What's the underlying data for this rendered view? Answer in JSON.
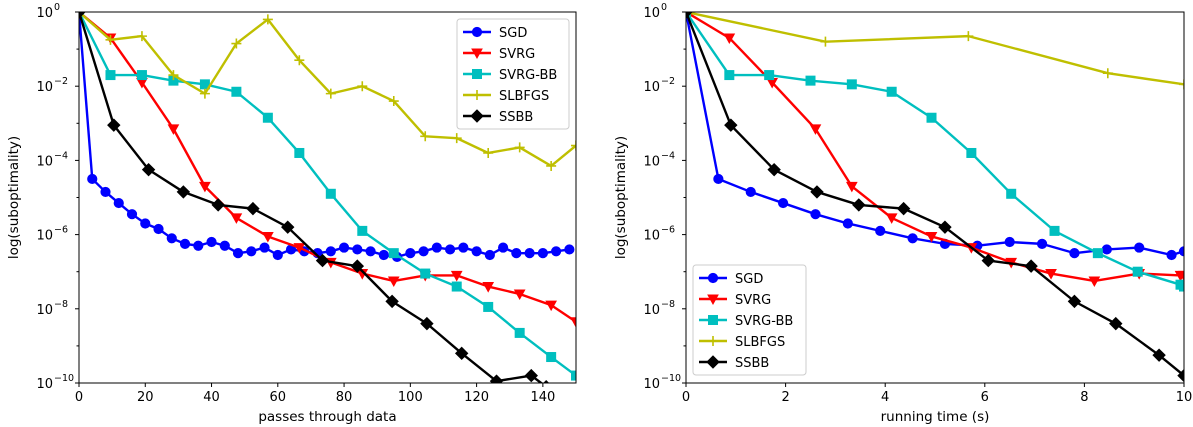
{
  "chart_data": [
    {
      "type": "line",
      "xlabel": "passes through data",
      "ylabel": "log(suboptimality)",
      "xlim": [
        0,
        150
      ],
      "ylim_log10": [
        -10,
        0
      ],
      "yscale": "log",
      "grid": false,
      "legend_position": "top-right",
      "xticks": [
        0,
        20,
        40,
        60,
        80,
        100,
        120,
        140
      ],
      "yticks_log10": [
        -10,
        -8,
        -6,
        -4,
        -2,
        0
      ],
      "series": [
        {
          "name": "SGD",
          "color": "#0000ff",
          "marker": "circle",
          "x": [
            0,
            4,
            8,
            12,
            16,
            20,
            24,
            28,
            32,
            36,
            40,
            44,
            48,
            52,
            56,
            60,
            64,
            68,
            72,
            76,
            80,
            84,
            88,
            92,
            96,
            100,
            104,
            108,
            112,
            116,
            120,
            124,
            128,
            132,
            136,
            140,
            144,
            148
          ],
          "log10_y": [
            0,
            -4.5,
            -4.85,
            -5.15,
            -5.45,
            -5.7,
            -5.85,
            -6.1,
            -6.25,
            -6.3,
            -6.2,
            -6.3,
            -6.5,
            -6.45,
            -6.35,
            -6.55,
            -6.4,
            -6.45,
            -6.5,
            -6.45,
            -6.35,
            -6.4,
            -6.45,
            -6.55,
            -6.6,
            -6.5,
            -6.45,
            -6.35,
            -6.4,
            -6.35,
            -6.45,
            -6.55,
            -6.35,
            -6.5,
            -6.5,
            -6.5,
            -6.45,
            -6.4
          ]
        },
        {
          "name": "SVRG",
          "color": "#ff0000",
          "marker": "triangle-down",
          "x": [
            0,
            9.5,
            19,
            28.5,
            38,
            47.5,
            57,
            66.5,
            76,
            85.5,
            95,
            104.5,
            114,
            123.5,
            133,
            142.5,
            150
          ],
          "log10_y": [
            0,
            -0.7,
            -1.9,
            -3.15,
            -4.7,
            -5.55,
            -6.05,
            -6.35,
            -6.75,
            -7.05,
            -7.25,
            -7.1,
            -7.1,
            -7.4,
            -7.6,
            -7.9,
            -8.35
          ]
        },
        {
          "name": "SVRG-BB",
          "color": "#00bfbf",
          "marker": "square",
          "x": [
            0,
            9.5,
            19,
            28.5,
            38,
            47.5,
            57,
            66.5,
            76,
            85.5,
            95,
            104.5,
            114,
            123.5,
            133,
            142.5,
            150
          ],
          "log10_y": [
            0,
            -1.7,
            -1.7,
            -1.85,
            -1.95,
            -2.15,
            -2.85,
            -3.8,
            -4.9,
            -5.9,
            -6.5,
            -7.05,
            -7.4,
            -7.95,
            -8.65,
            -9.3,
            -9.8
          ]
        },
        {
          "name": "SLBFGS",
          "color": "#bfbf00",
          "marker": "plus",
          "x": [
            0,
            9.5,
            19,
            28.5,
            38,
            47.5,
            57,
            66.5,
            76,
            85.5,
            95,
            104.5,
            114,
            123.5,
            133,
            142.5,
            150
          ],
          "log10_y": [
            0,
            -0.75,
            -0.65,
            -1.7,
            -2.2,
            -0.85,
            -0.2,
            -1.3,
            -2.2,
            -2.0,
            -2.4,
            -3.35,
            -3.4,
            -3.8,
            -3.65,
            -4.15,
            -3.6
          ]
        },
        {
          "name": "SSBB",
          "color": "#000000",
          "marker": "diamond",
          "x": [
            0,
            10.5,
            21,
            31.5,
            42,
            52.5,
            63,
            73.5,
            84,
            94.5,
            105,
            115.5,
            126,
            136.5,
            141
          ],
          "log10_y": [
            0,
            -3.05,
            -4.25,
            -4.85,
            -5.2,
            -5.3,
            -5.8,
            -6.7,
            -6.85,
            -7.8,
            -8.4,
            -9.2,
            -9.95,
            -9.8,
            -10.1
          ]
        }
      ]
    },
    {
      "type": "line",
      "xlabel": "running time (s)",
      "ylabel": "log(suboptimality)",
      "xlim": [
        0,
        10
      ],
      "ylim_log10": [
        -10,
        0
      ],
      "yscale": "log",
      "grid": false,
      "legend_position": "bottom-left",
      "xticks": [
        0,
        2,
        4,
        6,
        8,
        10
      ],
      "yticks_log10": [
        -10,
        -8,
        -6,
        -4,
        -2,
        0
      ],
      "series": [
        {
          "name": "SGD",
          "color": "#0000ff",
          "marker": "circle",
          "x": [
            0,
            0.65,
            1.3,
            1.95,
            2.6,
            3.25,
            3.9,
            4.55,
            5.2,
            5.85,
            6.5,
            7.15,
            7.8,
            8.45,
            9.1,
            9.75,
            10
          ],
          "log10_y": [
            0,
            -4.5,
            -4.85,
            -5.15,
            -5.45,
            -5.7,
            -5.9,
            -6.1,
            -6.25,
            -6.3,
            -6.2,
            -6.25,
            -6.5,
            -6.4,
            -6.35,
            -6.55,
            -6.45
          ]
        },
        {
          "name": "SVRG",
          "color": "#ff0000",
          "marker": "triangle-down",
          "x": [
            0,
            0.87,
            1.73,
            2.6,
            3.33,
            4.13,
            4.93,
            5.73,
            6.53,
            7.33,
            8.2,
            9.1,
            9.93,
            10
          ],
          "log10_y": [
            0,
            -0.7,
            -1.9,
            -3.15,
            -4.7,
            -5.55,
            -6.05,
            -6.35,
            -6.75,
            -7.05,
            -7.25,
            -7.05,
            -7.1,
            -7.1
          ]
        },
        {
          "name": "SVRG-BB",
          "color": "#00bfbf",
          "marker": "square",
          "x": [
            0,
            0.87,
            1.67,
            2.5,
            3.33,
            4.13,
            4.93,
            5.73,
            6.53,
            7.4,
            8.27,
            9.07,
            9.93,
            10
          ],
          "log10_y": [
            0,
            -1.7,
            -1.7,
            -1.85,
            -1.95,
            -2.15,
            -2.85,
            -3.8,
            -4.9,
            -5.9,
            -6.5,
            -7.0,
            -7.35,
            -7.4
          ]
        },
        {
          "name": "SLBFGS",
          "color": "#bfbf00",
          "marker": "plus",
          "x": [
            0,
            2.8,
            5.67,
            8.47,
            10
          ],
          "log10_y": [
            0,
            -0.8,
            -0.65,
            -1.65,
            -1.95
          ]
        },
        {
          "name": "SSBB",
          "color": "#000000",
          "marker": "diamond",
          "x": [
            0,
            0.9,
            1.77,
            2.63,
            3.47,
            4.37,
            5.2,
            6.07,
            6.93,
            7.8,
            8.63,
            9.5,
            10
          ],
          "log10_y": [
            0,
            -3.05,
            -4.25,
            -4.85,
            -5.2,
            -5.3,
            -5.8,
            -6.7,
            -6.85,
            -7.8,
            -8.4,
            -9.25,
            -9.8
          ]
        }
      ]
    }
  ]
}
